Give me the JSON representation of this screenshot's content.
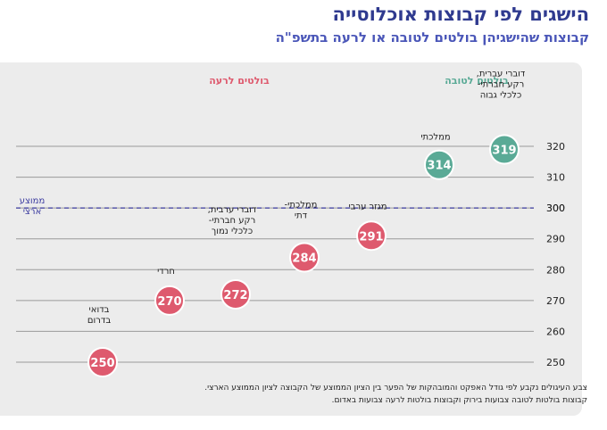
{
  "header": {
    "title": "הישגים לפי קבוצות אוכלוסייה",
    "subtitle": "קבוצות שהישגיהן בולטים לטובה או לרעה בתשפ\"ה"
  },
  "footnote": {
    "line1": "צבע העיגולים נקבע לפי גודל האפקט והמובהקות של הפער בין הציון הממוצע של הקבוצה לציון הממוצע הארצי.",
    "line2": "קבוצות בולטות לטובה צבועות בירוק וקבוצות בולטות לרעה צבועות באדום."
  },
  "colors": {
    "positive": "#5aaa96",
    "negative": "#de5a6e",
    "average_line": "#3c3ca0"
  },
  "chart_data": {
    "type": "scatter",
    "y_ticks": [
      250,
      260,
      270,
      280,
      290,
      300,
      310,
      320
    ],
    "ylim": [
      250,
      320
    ],
    "average": {
      "value": 300,
      "label": [
        "ממוצע",
        "ארצי"
      ]
    },
    "group_headers": {
      "positive": "בולטים לטובה",
      "negative": "בולטים לרעה"
    },
    "points": [
      {
        "value": 319,
        "label": "319",
        "name": [
          "דוברי עברית,",
          "רקע חברתי-",
          "כלכלי גבוה"
        ],
        "group": "positive"
      },
      {
        "value": 314,
        "label": "314",
        "name": [
          "ממלכתי"
        ],
        "group": "positive"
      },
      {
        "value": 291,
        "label": "291",
        "name": [
          "מגזר ערבי"
        ],
        "group": "negative"
      },
      {
        "value": 284,
        "label": "284",
        "name": [
          "ממלכתי-",
          "דתי"
        ],
        "group": "negative"
      },
      {
        "value": 272,
        "label": "272",
        "name": [
          "דוברי ערבית,",
          "רקע חברתי-",
          "כלכלי נמוך"
        ],
        "group": "negative"
      },
      {
        "value": 270,
        "label": "270",
        "name": [
          "חרדי"
        ],
        "group": "negative"
      },
      {
        "value": 250,
        "label": "250",
        "name": [
          "בדואי",
          "בדרום"
        ],
        "group": "negative"
      }
    ]
  }
}
